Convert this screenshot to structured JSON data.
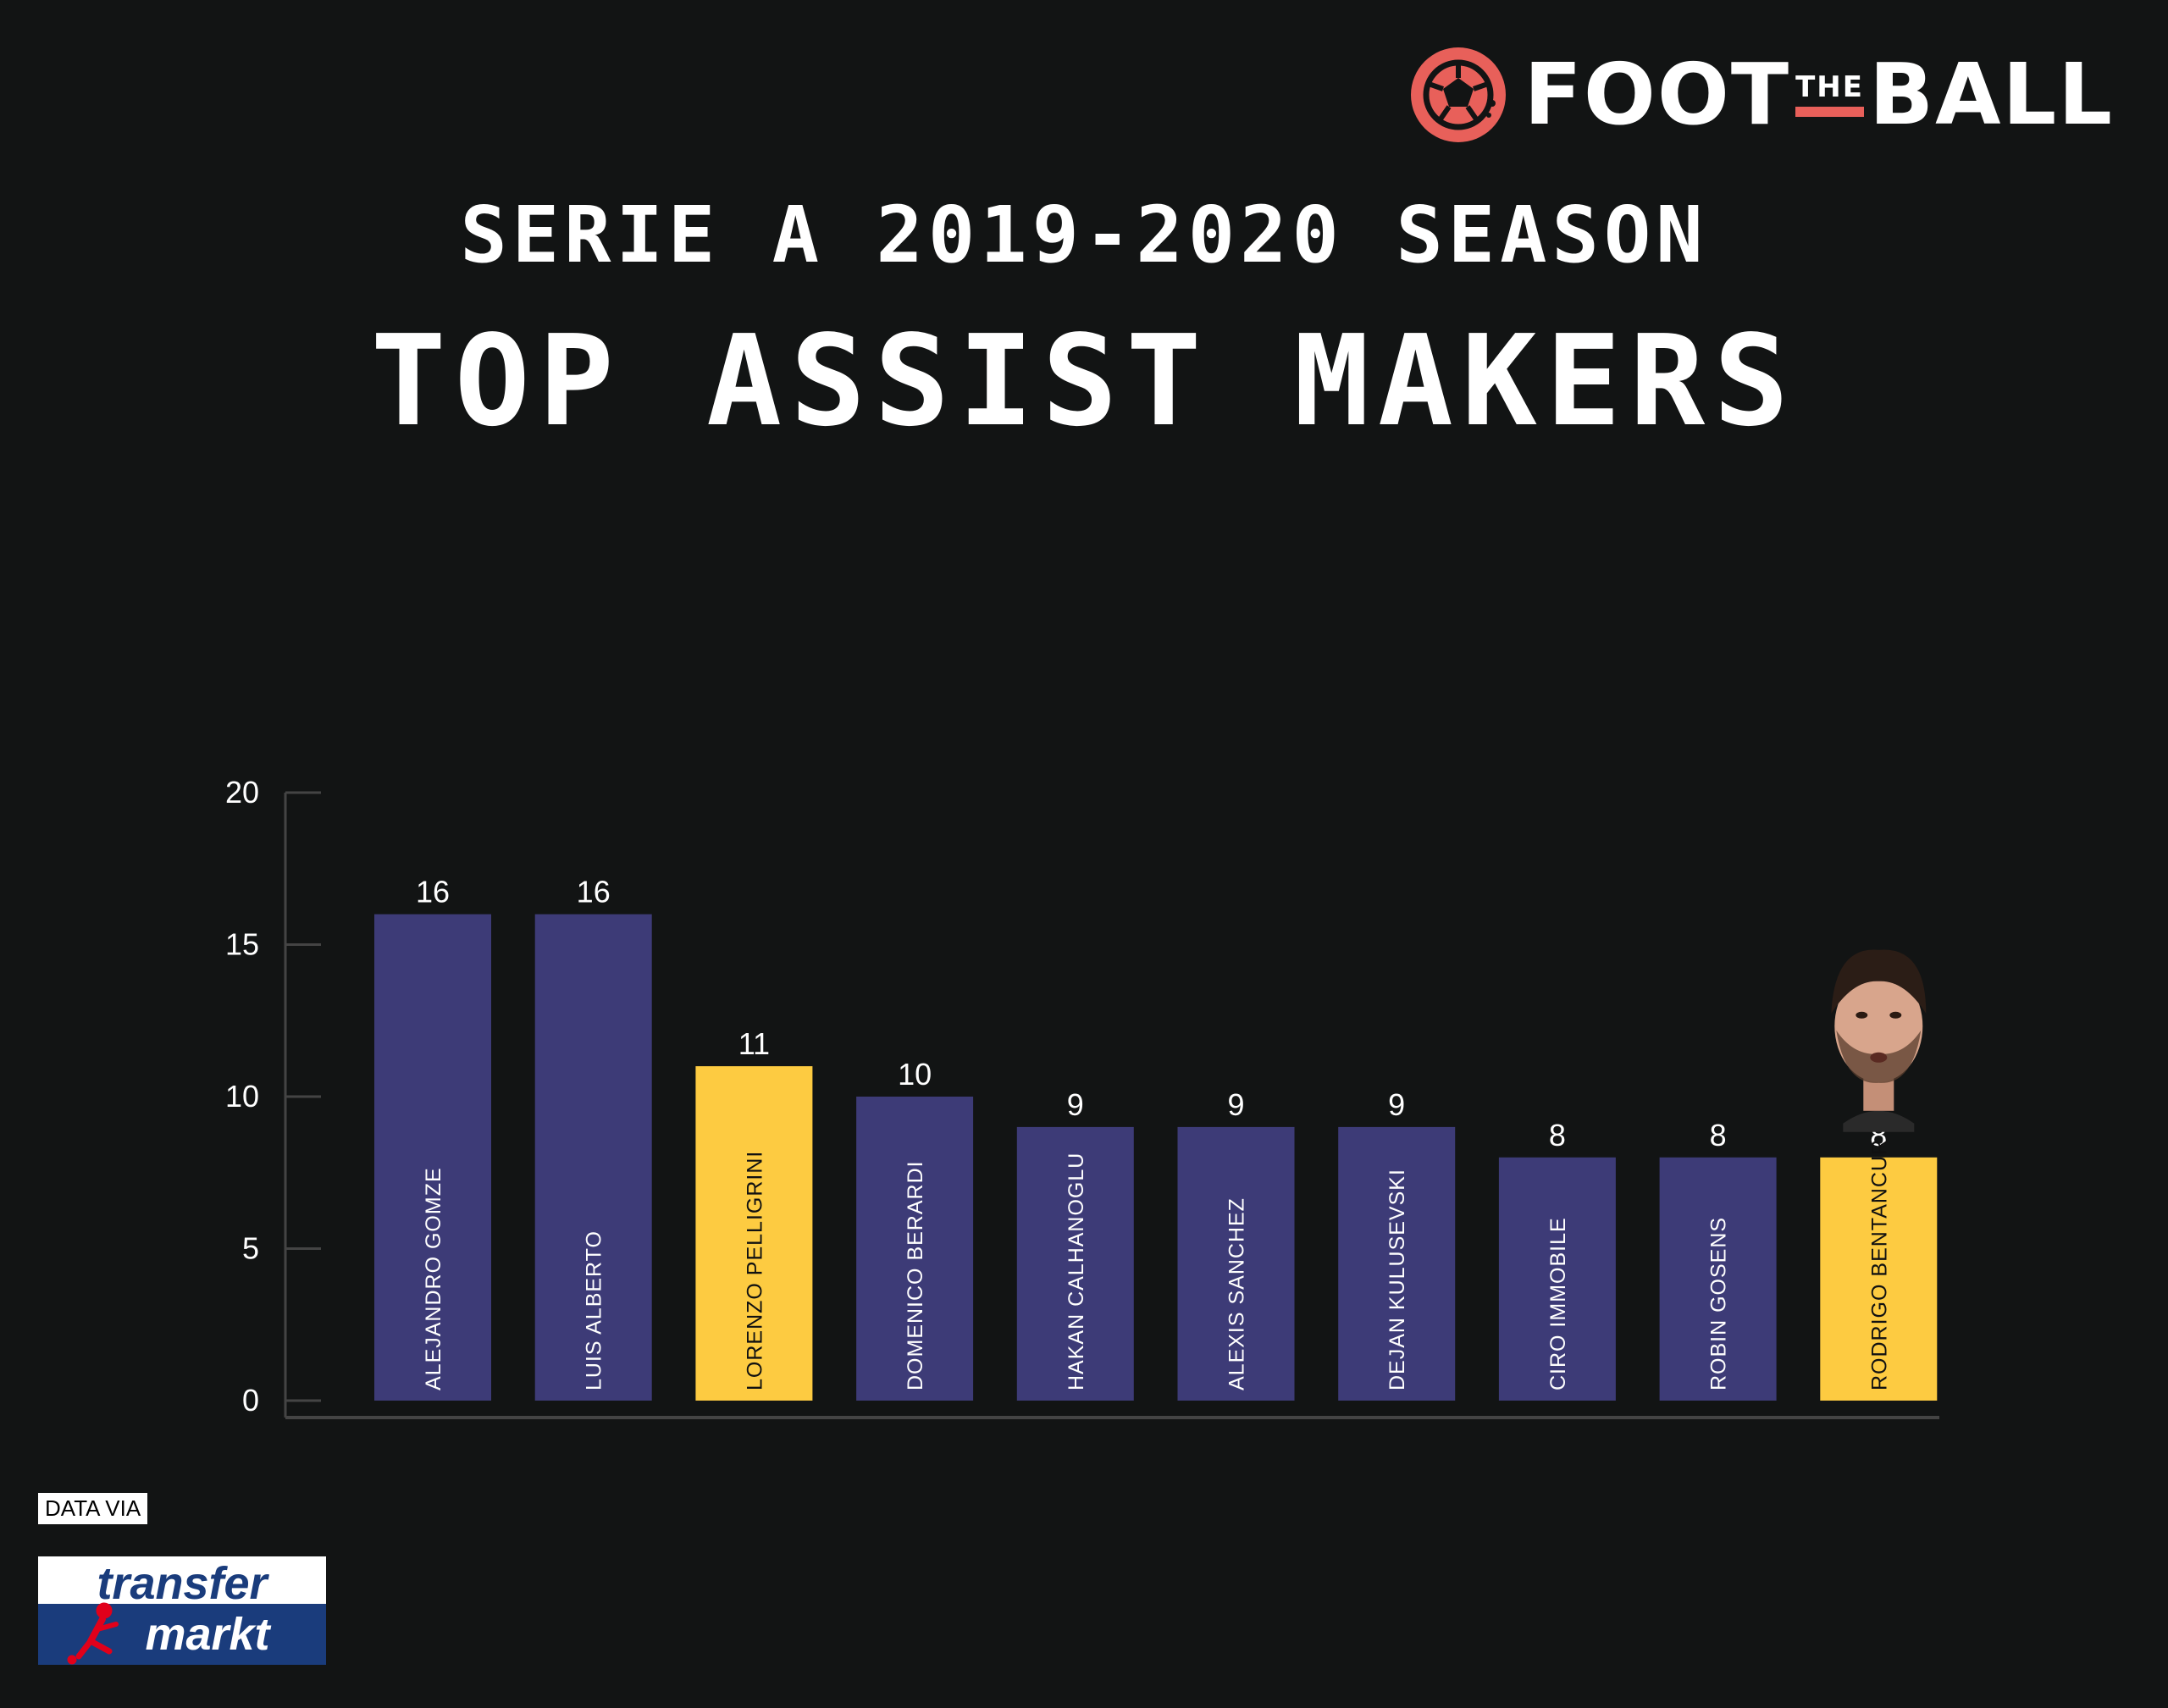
{
  "brand": {
    "name_left": "FOOT",
    "name_middle": "THE",
    "name_right": "BALL",
    "icon": "football-icon",
    "accent": "#e8605a"
  },
  "header": {
    "subtitle": "SERIE A 2019-2020 SEASON",
    "title": "TOP ASSIST MAKERS"
  },
  "source": {
    "caption": "DATA VIA",
    "logo_top": "transfer",
    "logo_bottom": "markt"
  },
  "colors": {
    "background": "#121414",
    "bar_default": "#3d3b77",
    "bar_highlight": "#fdcb41",
    "axis": "#444444"
  },
  "chart_data": {
    "type": "bar",
    "title": "TOP ASSIST MAKERS",
    "xlabel": "",
    "ylabel": "",
    "ylim": [
      0,
      20
    ],
    "yticks": [
      0,
      5,
      10,
      15,
      20
    ],
    "grid": false,
    "categories": [
      "ALEJANDRO GOMZE",
      "LUIS ALBERTO",
      "LORENZO PELLIGRINI",
      "DOMENICO BERARDI",
      "HAKAN CALHANOGLU",
      "ALEXIS SANCHEZ",
      "DEJAN KULUSEVSKI",
      "CIRO IMMOBILE",
      "ROBIN GOSENS",
      "RODRIGO BENTANCUR"
    ],
    "values": [
      16,
      16,
      11,
      10,
      9,
      9,
      9,
      8,
      8,
      8
    ],
    "highlighted": [
      false,
      false,
      true,
      false,
      false,
      false,
      false,
      false,
      false,
      true
    ],
    "player_photo_on": "RODRIGO BENTANCUR"
  }
}
